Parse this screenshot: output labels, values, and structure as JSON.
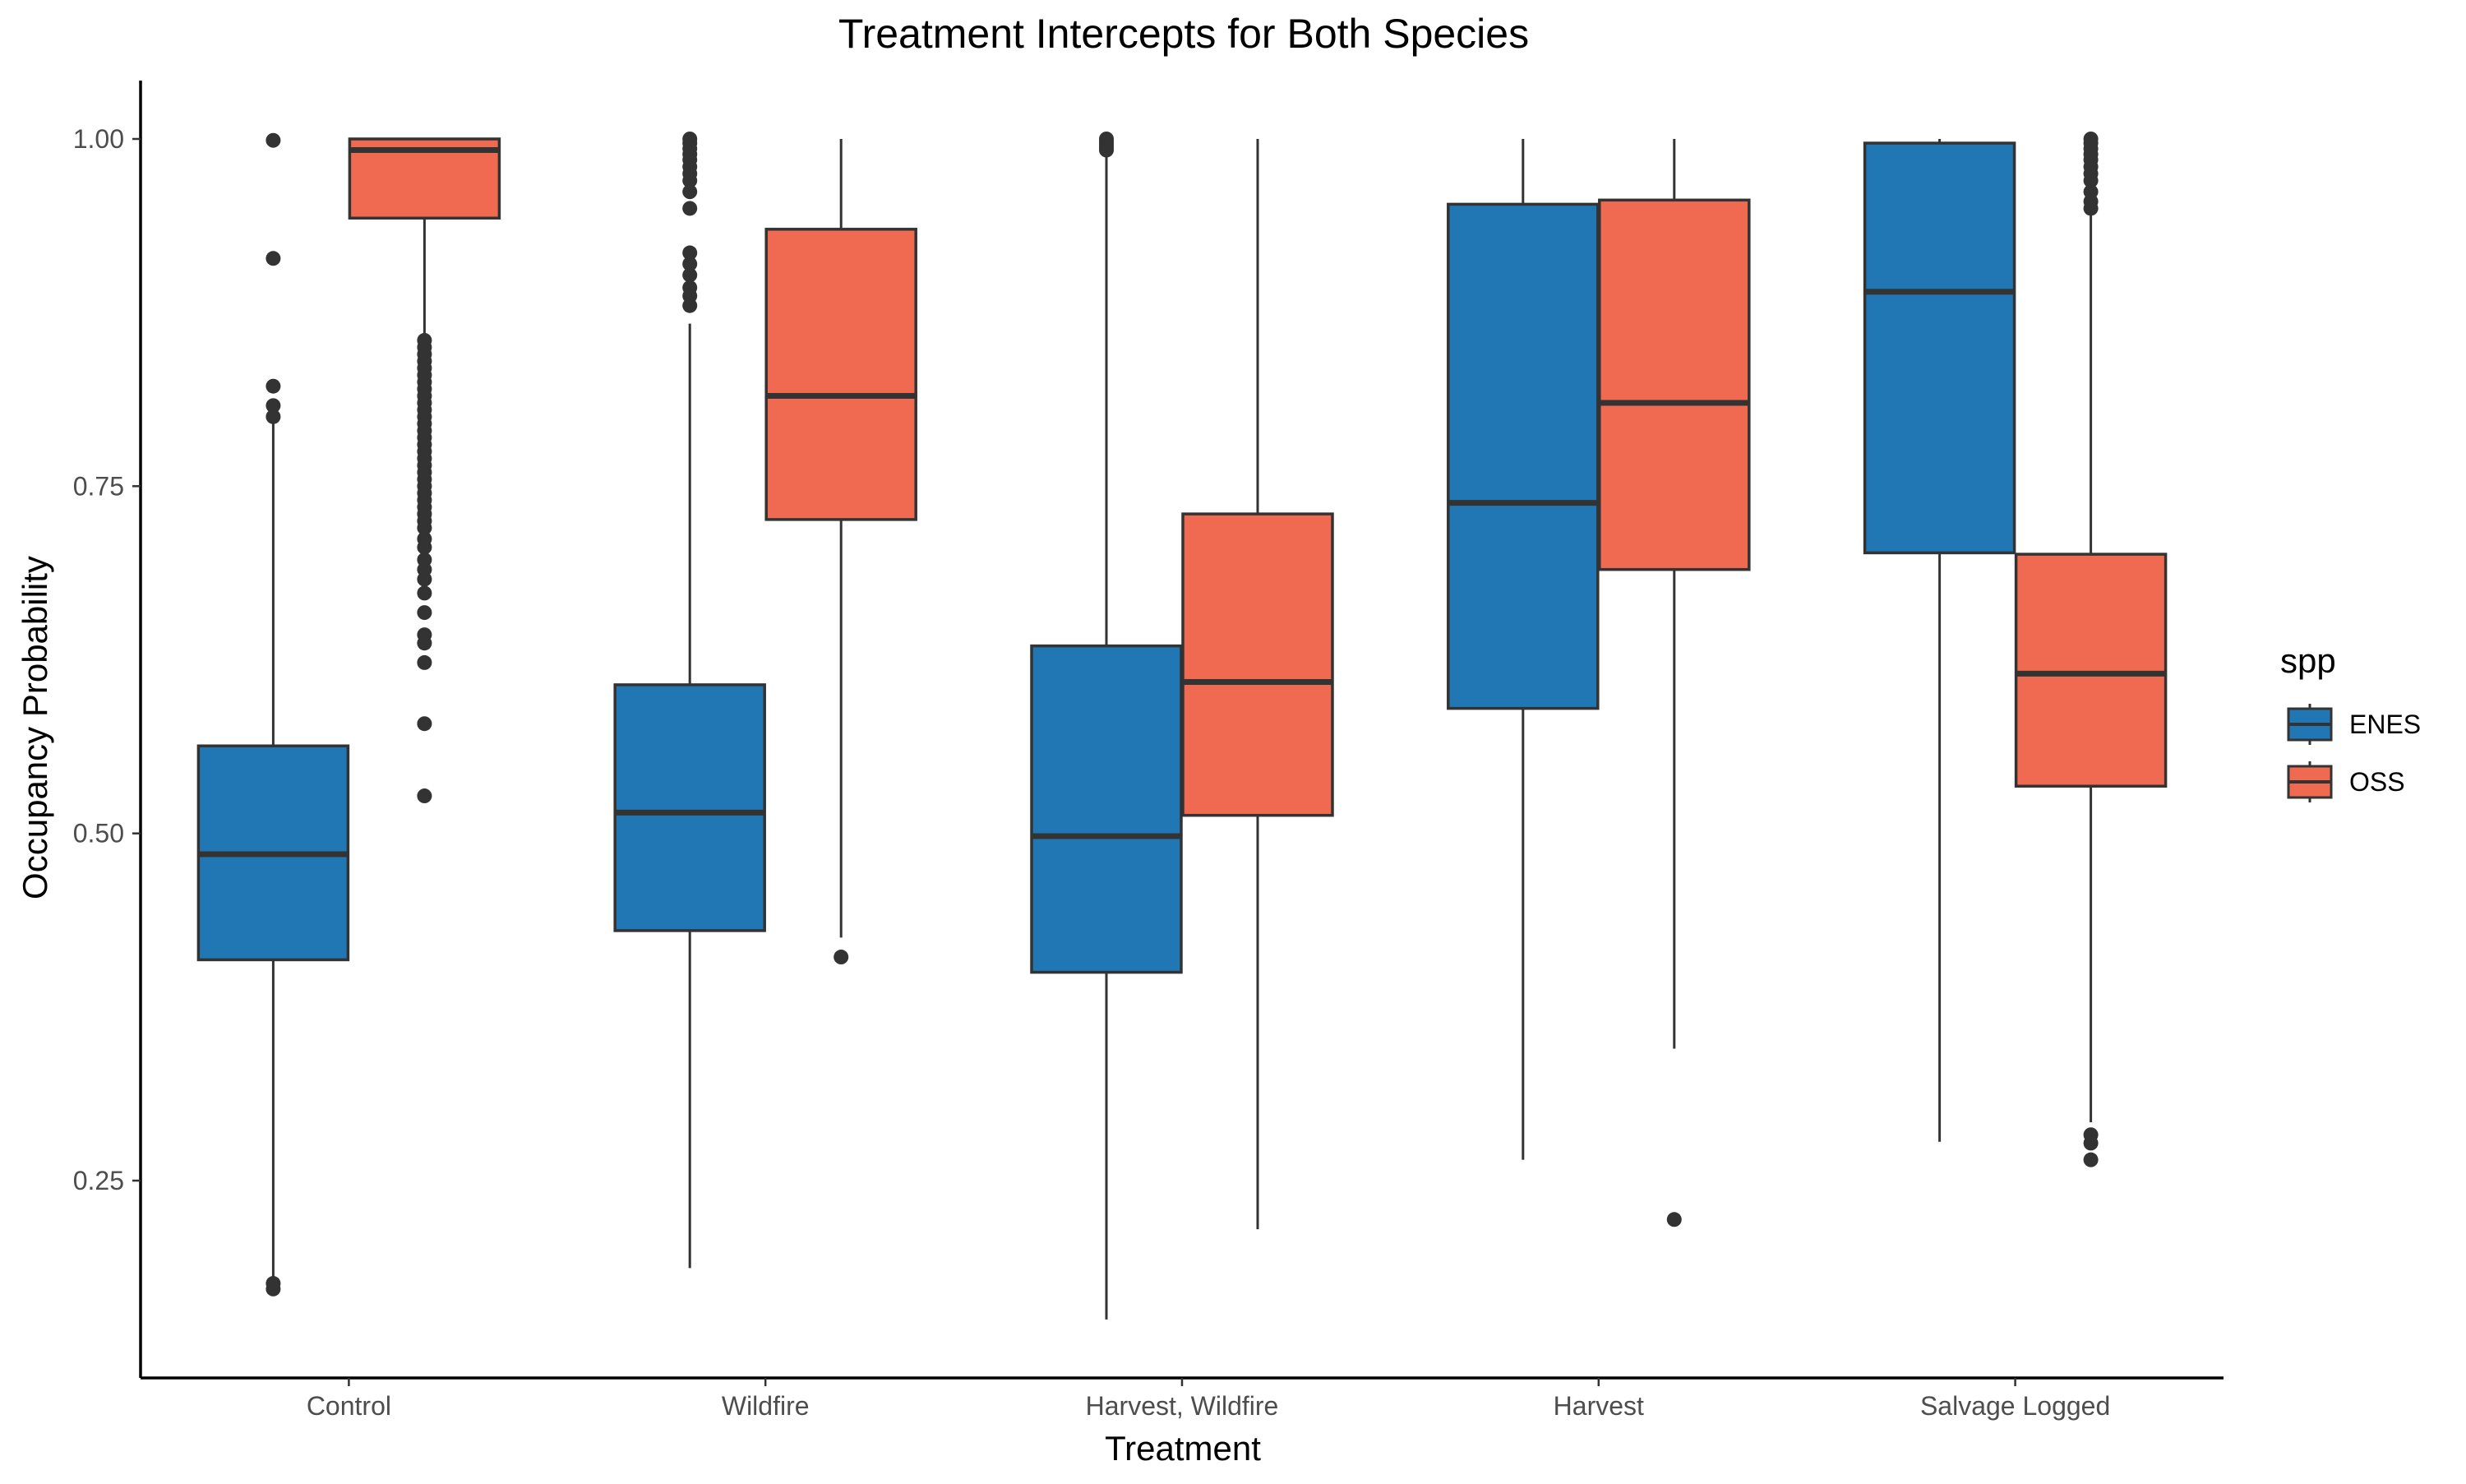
{
  "chart_data": {
    "type": "box",
    "title": "Treatment Intercepts for Both Species",
    "xlabel": "Treatment",
    "ylabel": "Occupancy Probability",
    "categories": [
      "Control",
      "Wildfire",
      "Harvest, Wildfire",
      "Harvest",
      "Salvage Logged"
    ],
    "yticks": [
      0.25,
      0.5,
      0.75,
      1.0
    ],
    "ytick_labels": [
      "0.25",
      "0.50",
      "0.75",
      "1.00"
    ],
    "ylim": [
      0.12,
      1.04
    ],
    "grid": false,
    "legend": {
      "title": "spp",
      "position": "right",
      "entries": [
        "ENES",
        "OSS"
      ]
    },
    "series": [
      {
        "name": "ENES",
        "color": "#2077b4",
        "boxes": [
          {
            "category": "Control",
            "whisker_low": 0.178,
            "q1": 0.409,
            "median": 0.485,
            "q3": 0.563,
            "whisker_high": 0.795,
            "outliers": [
              0.999,
              0.914,
              0.822,
              0.808,
              0.8,
              0.176,
              0.172
            ]
          },
          {
            "category": "Wildfire",
            "whisker_low": 0.187,
            "q1": 0.43,
            "median": 0.515,
            "q3": 0.607,
            "whisker_high": 0.867,
            "outliers": [
              1.0,
              0.997,
              0.993,
              0.989,
              0.985,
              0.98,
              0.975,
              0.97,
              0.962,
              0.95,
              0.918,
              0.91,
              0.902,
              0.893,
              0.887,
              0.88
            ]
          },
          {
            "category": "Harvest, Wildfire",
            "whisker_low": 0.15,
            "q1": 0.4,
            "median": 0.498,
            "q3": 0.635,
            "whisker_high": 0.99,
            "outliers": [
              1.0,
              0.998,
              0.996,
              0.994,
              0.992
            ]
          },
          {
            "category": "Harvest",
            "whisker_low": 0.265,
            "q1": 0.59,
            "median": 0.738,
            "q3": 0.953,
            "whisker_high": 1.0,
            "outliers": []
          },
          {
            "category": "Salvage Logged",
            "whisker_low": 0.278,
            "q1": 0.702,
            "median": 0.89,
            "q3": 0.997,
            "whisker_high": 1.0,
            "outliers": []
          }
        ]
      },
      {
        "name": "OSS",
        "color": "#ef6a51",
        "boxes": [
          {
            "category": "Control",
            "whisker_low": 0.86,
            "q1": 0.943,
            "median": 0.992,
            "q3": 1.0,
            "whisker_high": 1.0,
            "outliers": [
              0.855,
              0.85,
              0.845,
              0.84,
              0.835,
              0.83,
              0.825,
              0.82,
              0.815,
              0.81,
              0.805,
              0.8,
              0.795,
              0.79,
              0.785,
              0.78,
              0.775,
              0.77,
              0.765,
              0.76,
              0.755,
              0.75,
              0.745,
              0.74,
              0.735,
              0.73,
              0.725,
              0.72,
              0.712,
              0.706,
              0.697,
              0.69,
              0.683,
              0.673,
              0.659,
              0.643,
              0.637,
              0.623,
              0.579,
              0.527
            ]
          },
          {
            "category": "Wildfire",
            "whisker_low": 0.425,
            "q1": 0.726,
            "median": 0.815,
            "q3": 0.935,
            "whisker_high": 1.0,
            "outliers": [
              0.411
            ]
          },
          {
            "category": "Harvest, Wildfire",
            "whisker_low": 0.215,
            "q1": 0.513,
            "median": 0.609,
            "q3": 0.73,
            "whisker_high": 1.0,
            "outliers": []
          },
          {
            "category": "Harvest",
            "whisker_low": 0.345,
            "q1": 0.69,
            "median": 0.81,
            "q3": 0.956,
            "whisker_high": 1.0,
            "outliers": [
              0.222
            ]
          },
          {
            "category": "Salvage Logged",
            "whisker_low": 0.292,
            "q1": 0.534,
            "median": 0.615,
            "q3": 0.701,
            "whisker_high": 0.945,
            "outliers": [
              1.0,
              0.997,
              0.993,
              0.989,
              0.985,
              0.98,
              0.975,
              0.97,
              0.962,
              0.955,
              0.95,
              0.283,
              0.277,
              0.265
            ]
          }
        ]
      }
    ]
  }
}
